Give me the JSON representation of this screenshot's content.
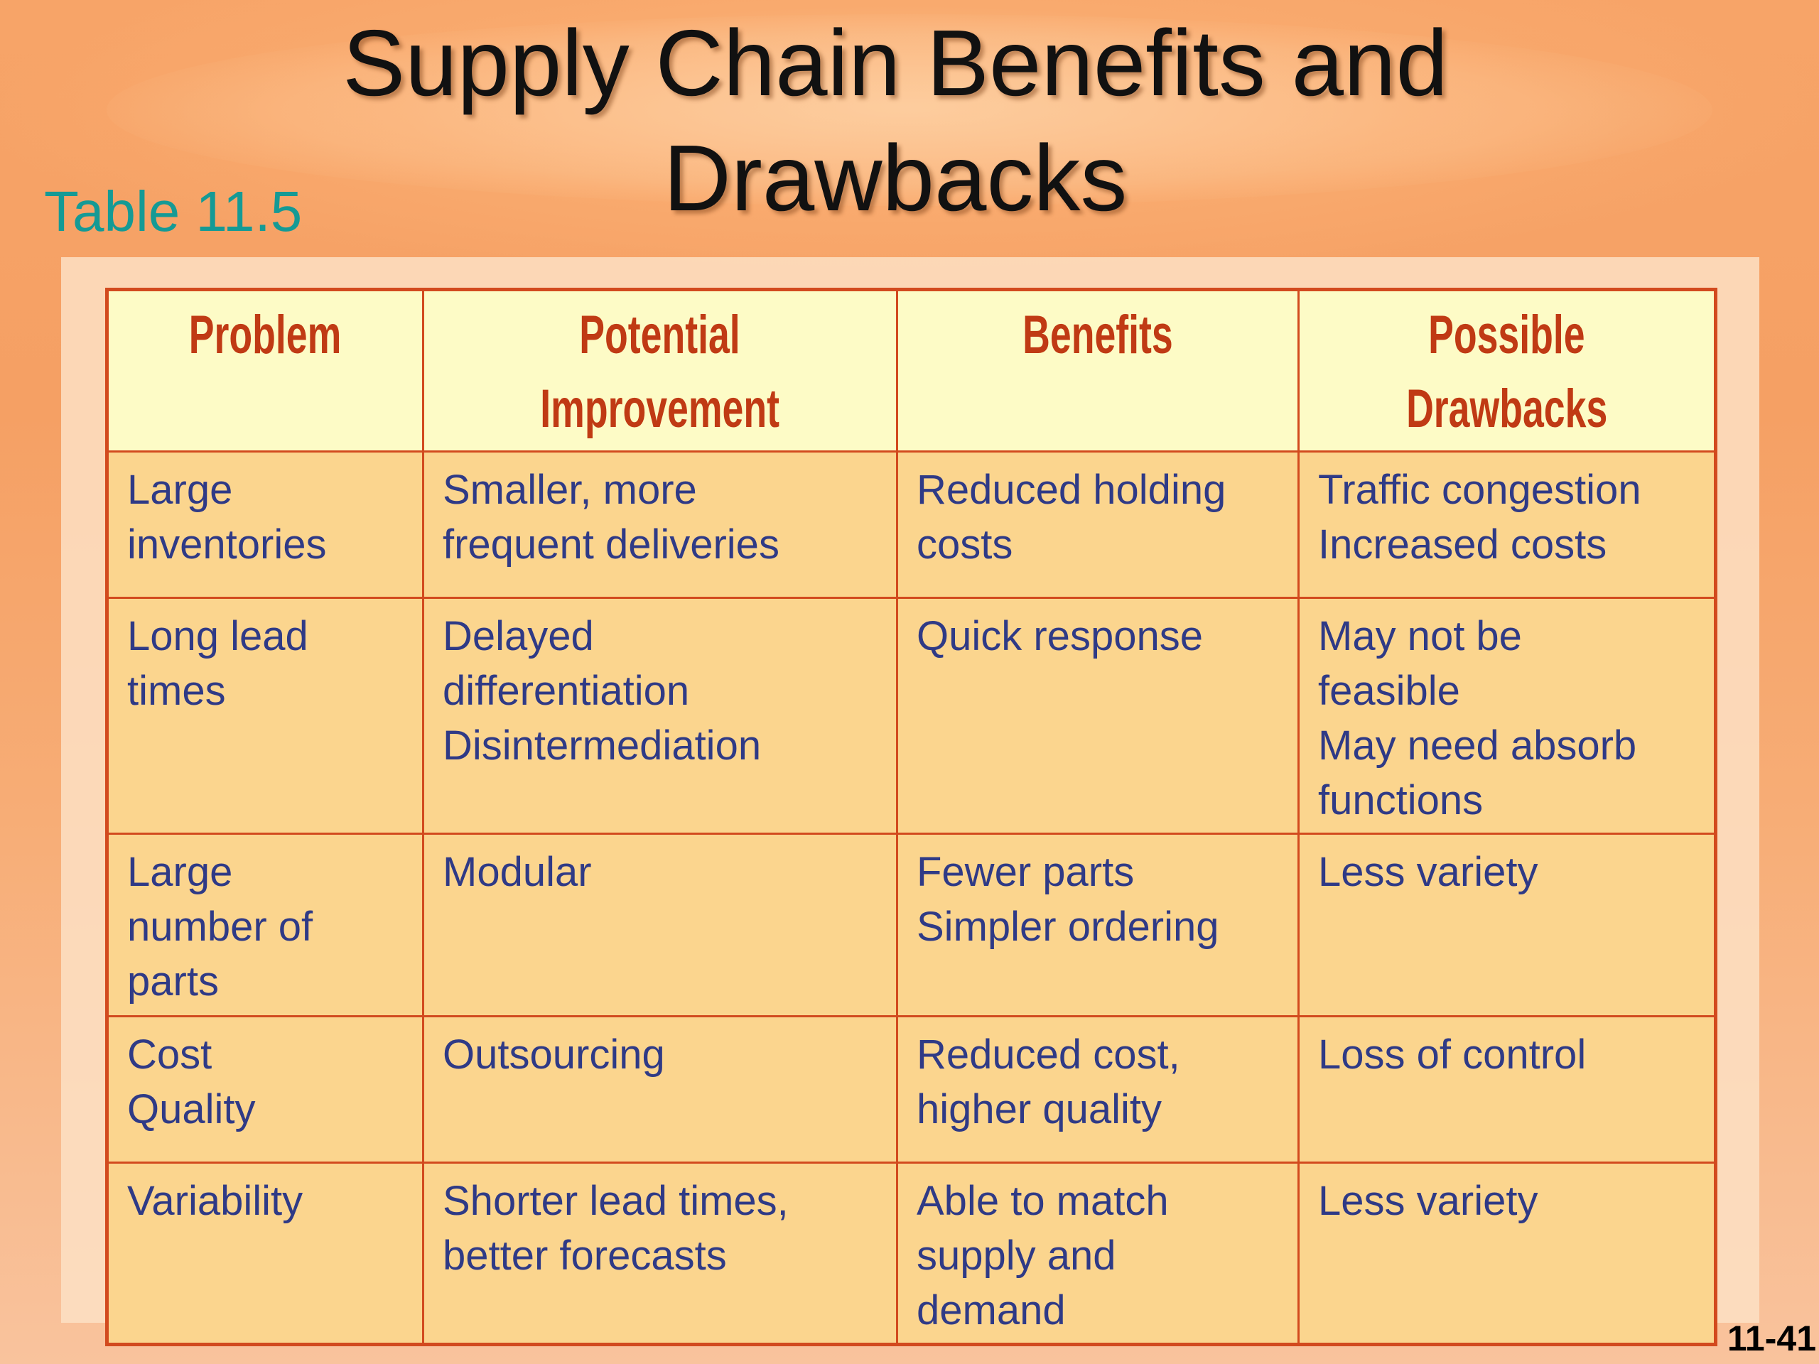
{
  "title": {
    "line1": "Supply Chain Benefits and",
    "line2": "Drawbacks"
  },
  "table_label": "Table 11.5",
  "table": {
    "headers": [
      {
        "line1": "Problem",
        "line2": ""
      },
      {
        "line1": "Potential",
        "line2": "Improvement"
      },
      {
        "line1": "Benefits",
        "line2": ""
      },
      {
        "line1": "Possible",
        "line2": "Drawbacks"
      }
    ],
    "rows": [
      [
        [
          "Large",
          "inventories"
        ],
        [
          "Smaller, more",
          "frequent deliveries"
        ],
        [
          "Reduced holding",
          "costs"
        ],
        [
          "Traffic congestion",
          "Increased costs"
        ]
      ],
      [
        [
          "Long lead",
          "times"
        ],
        [
          "Delayed",
          "differentiation",
          "Disintermediation"
        ],
        [
          "Quick response"
        ],
        [
          "May not be",
          "feasible",
          "May need absorb",
          "functions"
        ]
      ],
      [
        [
          "Large",
          "number of",
          "parts"
        ],
        [
          "Modular"
        ],
        [
          "Fewer parts",
          "Simpler ordering"
        ],
        [
          "Less variety"
        ]
      ],
      [
        [
          "Cost",
          "Quality"
        ],
        [
          "Outsourcing"
        ],
        [
          "Reduced cost,",
          "higher quality"
        ],
        [
          "Loss of control"
        ]
      ],
      [
        [
          "Variability"
        ],
        [
          "Shorter lead times,",
          "better forecasts"
        ],
        [
          "Able to match",
          "supply and",
          "demand"
        ],
        [
          "Less variety"
        ]
      ]
    ]
  },
  "page_number": "11-41"
}
